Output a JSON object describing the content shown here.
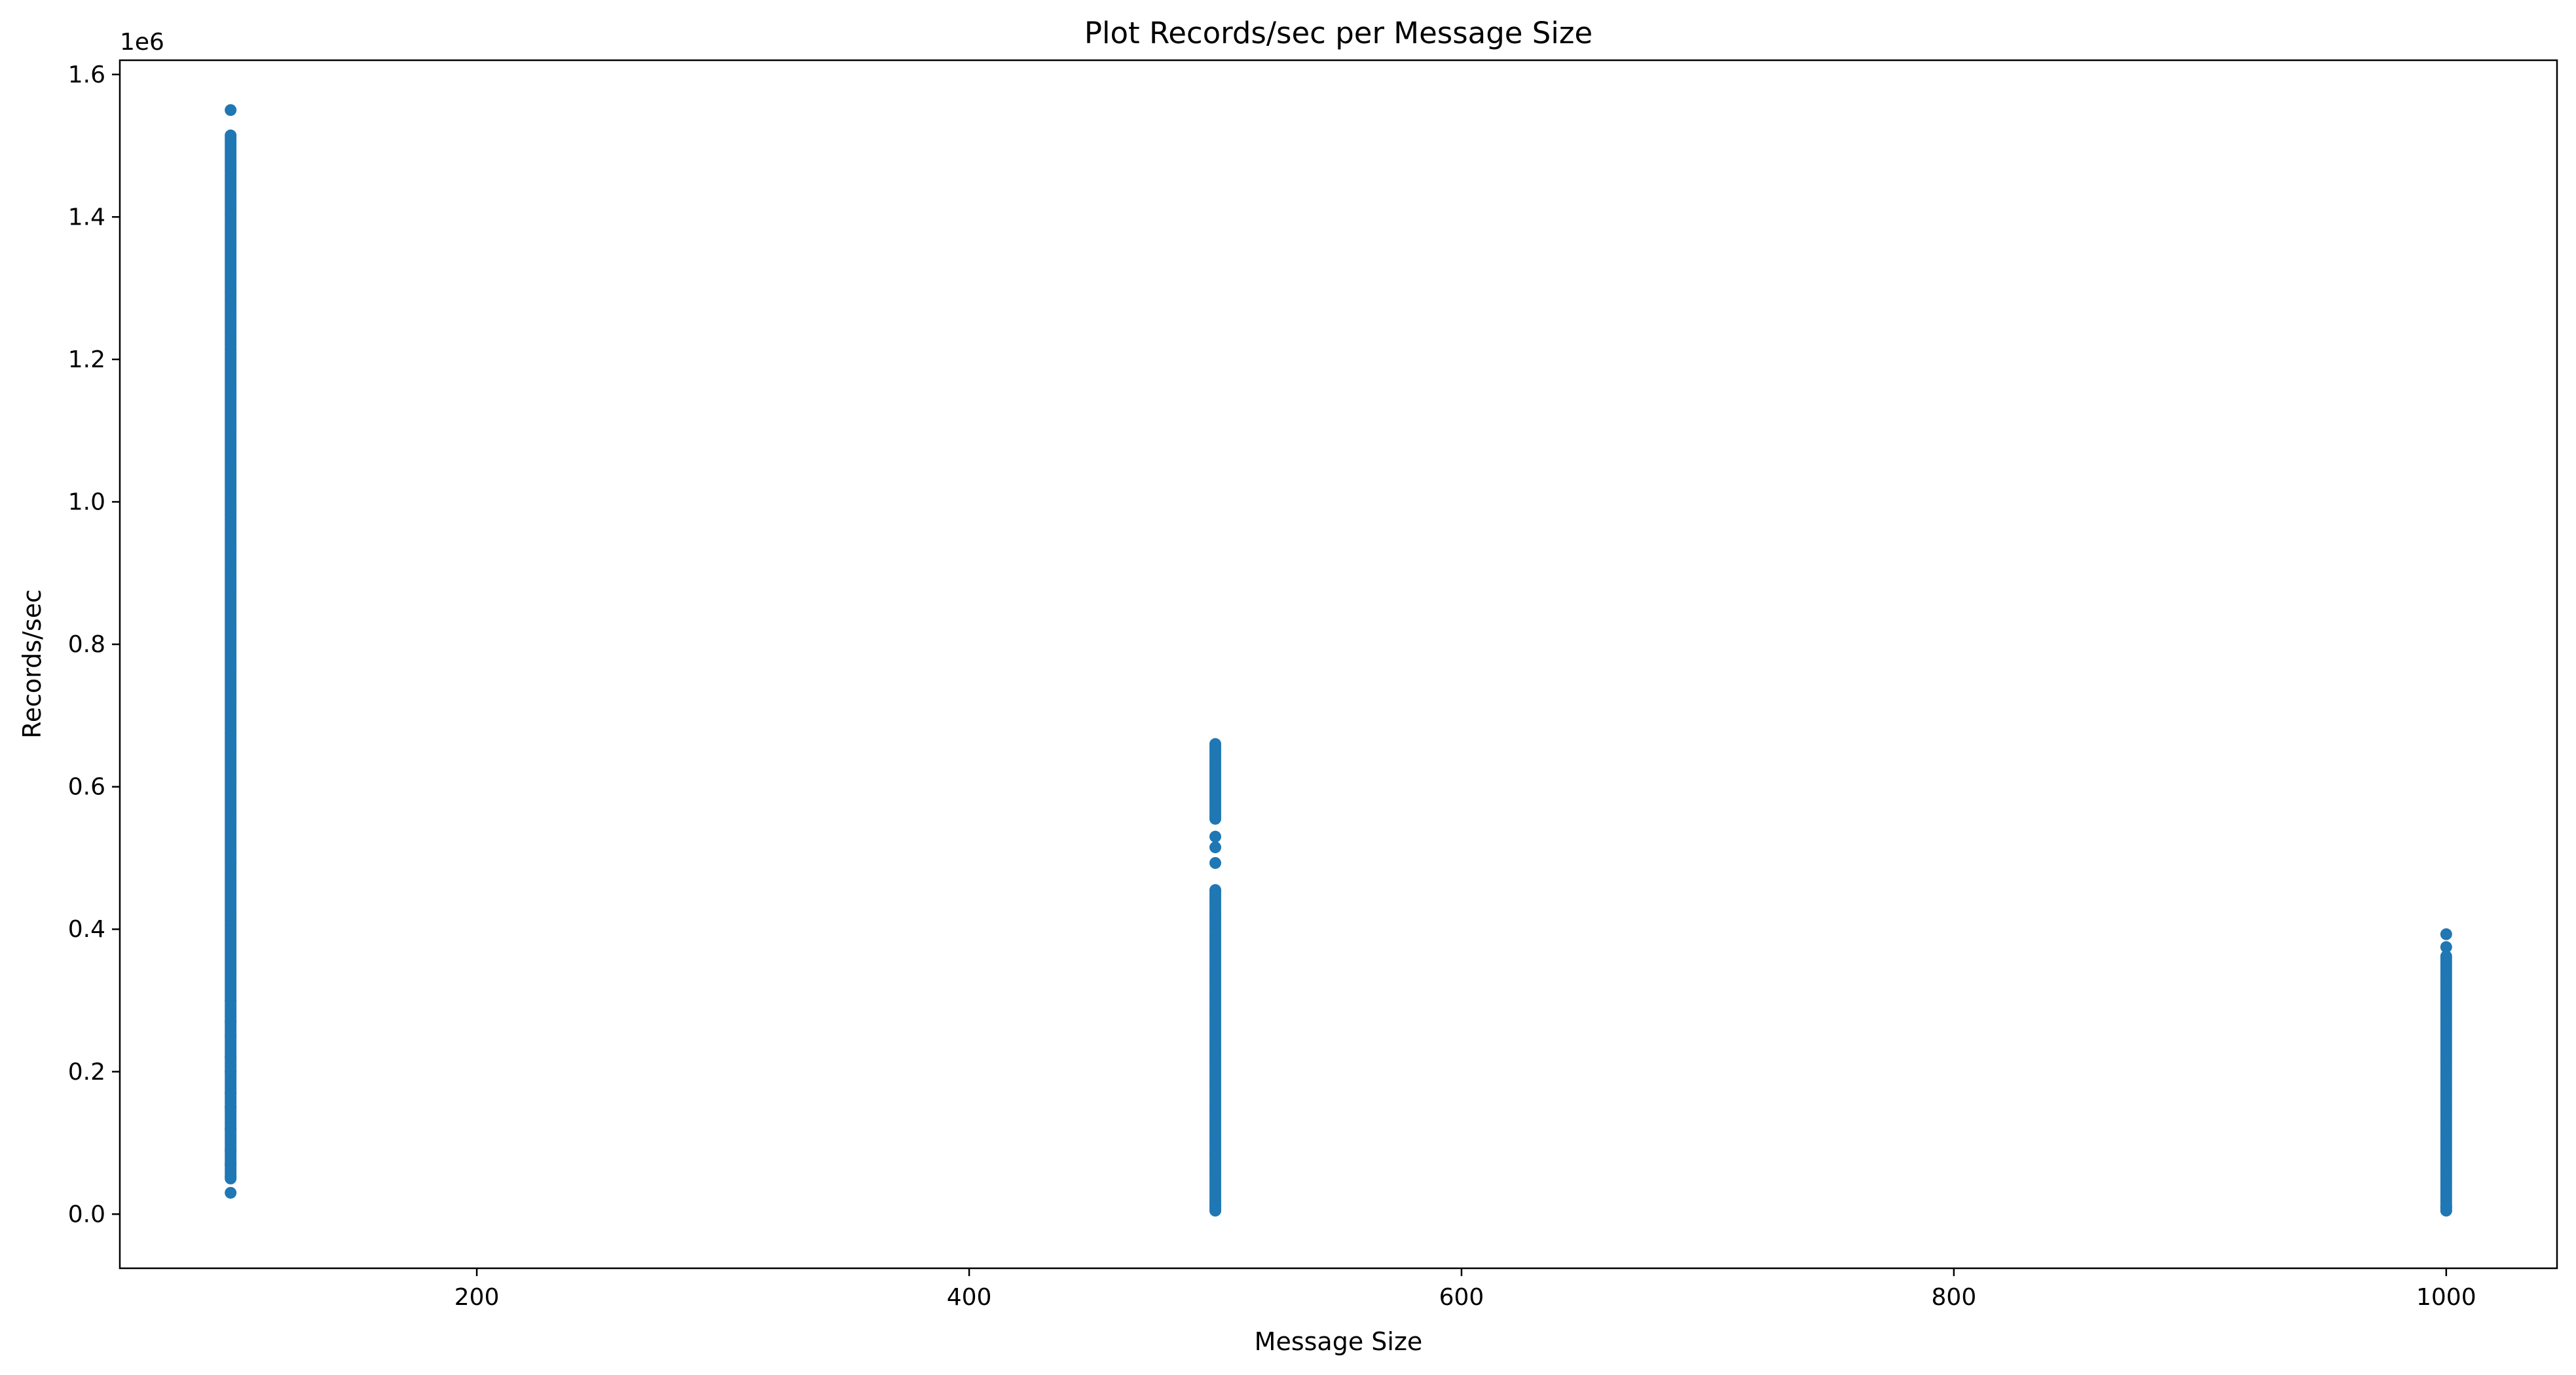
{
  "chart_data": {
    "type": "scatter",
    "title": "Plot Records/sec per Message Size",
    "xlabel": "Message Size",
    "ylabel": "Records/sec",
    "y_offset_text": "1e6",
    "xlim": [
      55,
      1045
    ],
    "ylim": [
      -0.076,
      1.62
    ],
    "y_multiplier": 1000000,
    "x_ticks": [
      200,
      400,
      600,
      800,
      1000
    ],
    "x_tick_labels": [
      "200",
      "400",
      "600",
      "800",
      "1000"
    ],
    "y_ticks": [
      0.0,
      0.2,
      0.4,
      0.6,
      0.8,
      1.0,
      1.2,
      1.4,
      1.6
    ],
    "y_tick_labels": [
      "0.0",
      "0.2",
      "0.4",
      "0.6",
      "0.8",
      "1.0",
      "1.2",
      "1.4",
      "1.6"
    ],
    "grid": false,
    "marker_color": "#1f77b4",
    "series": [
      {
        "x": 100,
        "y_ranges_1e6": [
          [
            0.05,
            0.3
          ],
          [
            0.3,
            1.515
          ]
        ],
        "y_points_1e6": [
          0.03,
          0.052,
          0.07,
          0.09,
          0.12,
          0.15,
          0.17,
          0.2,
          0.22,
          0.25,
          0.27,
          1.55
        ]
      },
      {
        "x": 500,
        "y_ranges_1e6": [
          [
            0.005,
            0.455
          ],
          [
            0.555,
            0.662
          ]
        ],
        "y_points_1e6": [
          0.005,
          0.012,
          0.493,
          0.515,
          0.53,
          0.455
        ]
      },
      {
        "x": 1000,
        "y_ranges_1e6": [
          [
            0.005,
            0.365
          ]
        ],
        "y_points_1e6": [
          0.005,
          0.01,
          0.375,
          0.393
        ]
      }
    ]
  }
}
